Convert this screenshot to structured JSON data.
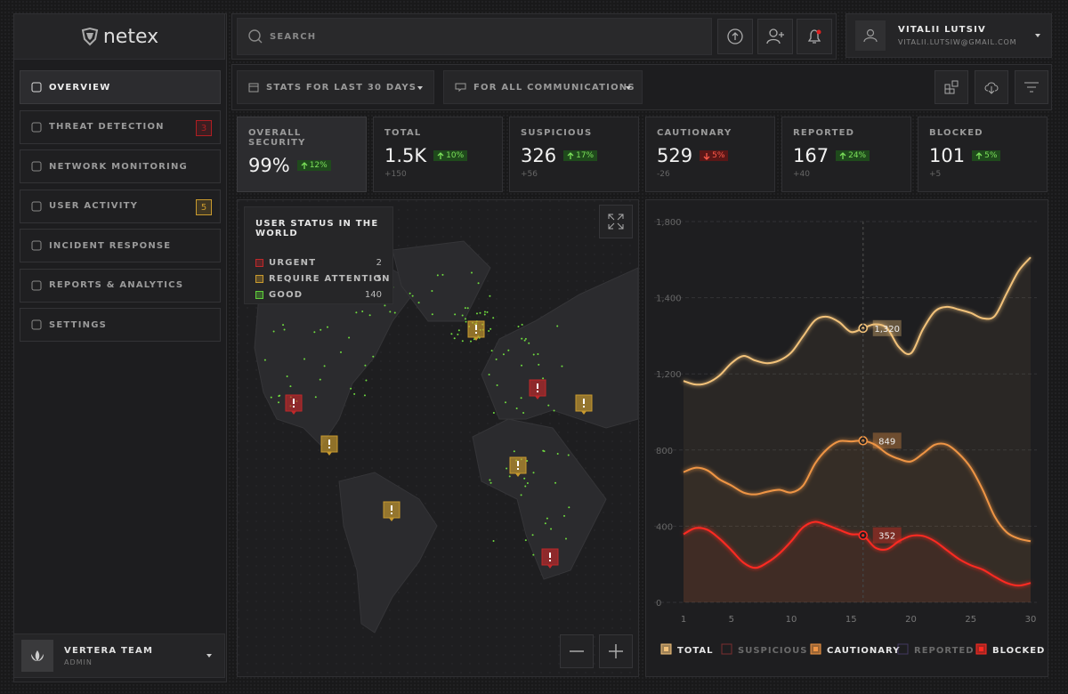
{
  "brand": "netex",
  "nav": [
    {
      "label": "OVERVIEW",
      "active": true
    },
    {
      "label": "THREAT DETECTION",
      "badge": 3,
      "badge_color": "#b01e22"
    },
    {
      "label": "NETWORK MONITORING"
    },
    {
      "label": "USER ACTIVITY",
      "badge": 5,
      "badge_color": "#c99a2e"
    },
    {
      "label": "INCIDENT RESPONSE"
    },
    {
      "label": "REPORTS & ANALYTICS"
    },
    {
      "label": "SETTINGS"
    }
  ],
  "team": {
    "name": "VERTERA TEAM",
    "role": "ADMIN"
  },
  "search": {
    "placeholder": "SEARCH"
  },
  "user": {
    "name": "VITALII LUTSIV",
    "email": "VITALII.LUTSIW@GMAIL.COM"
  },
  "filters": [
    "STATS FOR LAST 30 DAYS",
    "FOR ALL COMMUNICATIONS"
  ],
  "cards": [
    {
      "label": "OVERALL SECURITY",
      "value": "99%",
      "change": "12%",
      "direction": "up",
      "active": true
    },
    {
      "label": "TOTAL",
      "value": "1.5K",
      "change": "10%",
      "direction": "up",
      "sub": "+150"
    },
    {
      "label": "SUSPICIOUS",
      "value": "326",
      "change": "17%",
      "direction": "up",
      "sub": "+56"
    },
    {
      "label": "CAUTIONARY",
      "value": "529",
      "change": "5%",
      "direction": "down",
      "sub": "-26"
    },
    {
      "label": "REPORTED",
      "value": "167",
      "change": "24%",
      "direction": "up",
      "sub": "+40"
    },
    {
      "label": "BLOCKED",
      "value": "101",
      "change": "5%",
      "direction": "up",
      "sub": "+5"
    }
  ],
  "map": {
    "title": "USER STATUS IN THE WORLD",
    "legend": [
      {
        "label": "URGENT",
        "count": 2,
        "color": "#c0282a"
      },
      {
        "label": "REQUIRE ATTENTION",
        "count": 5,
        "color": "#c99a2e"
      },
      {
        "label": "GOOD",
        "count": 140,
        "color": "#5fd03a"
      }
    ]
  },
  "chart_data": {
    "type": "line",
    "x": [
      1,
      2,
      3,
      4,
      5,
      6,
      7,
      8,
      9,
      10,
      11,
      12,
      13,
      14,
      15,
      16,
      17,
      18,
      19,
      20,
      21,
      22,
      23,
      24,
      25,
      26,
      27,
      28,
      29,
      30
    ],
    "xlim": [
      1,
      30
    ],
    "xticks": [
      1,
      5,
      10,
      15,
      20,
      25,
      30
    ],
    "ylim": [
      0,
      1800
    ],
    "yticks": [
      0,
      400,
      800,
      {
        "value": 1200,
        "label": "1,200"
      },
      {
        "value": 1400,
        "label": "1,400"
      },
      {
        "value": 1800,
        "label": "1,800"
      }
    ],
    "grid": true,
    "series": [
      {
        "name": "TOTAL",
        "color": "#f2c27a",
        "visible": true,
        "values": [
          1163,
          1144,
          1153,
          1191,
          1228,
          1247,
          1235,
          1228,
          1235,
          1256,
          1299,
          1341,
          1350,
          1336,
          1310,
          1320,
          1330,
          1320,
          1270,
          1254,
          1317,
          1364,
          1376,
          1369,
          1360,
          1346,
          1352,
          1423,
          1541,
          1612
        ],
        "value_labels": [
          null,
          null,
          null,
          null,
          null,
          null,
          null,
          null,
          null,
          null,
          null,
          null,
          null,
          null,
          null,
          "1,320",
          null,
          null,
          null,
          null,
          null,
          null,
          null,
          null,
          null,
          null,
          null,
          null,
          null,
          null
        ]
      },
      {
        "name": "SUSPICIOUS",
        "color": "#b83a3a",
        "visible": false
      },
      {
        "name": "CAUTIONARY",
        "color": "#ef9545",
        "visible": true,
        "values": [
          684,
          707,
          693,
          646,
          614,
          577,
          567,
          581,
          591,
          577,
          614,
          730,
          805,
          846,
          845,
          849,
          828,
          781,
          753,
          740,
          781,
          828,
          828,
          781,
          707,
          591,
          451,
          368,
          335,
          321
        ],
        "value_labels": [
          null,
          null,
          null,
          null,
          null,
          null,
          null,
          null,
          null,
          null,
          null,
          null,
          null,
          null,
          null,
          "849",
          null,
          null,
          null,
          null,
          null,
          null,
          null,
          null,
          null,
          null,
          null,
          null,
          null,
          null
        ]
      },
      {
        "name": "REPORTED",
        "color": "#5a4a8a",
        "visible": false
      },
      {
        "name": "BLOCKED",
        "color": "#ff2a22",
        "visible": true,
        "values": [
          358,
          390,
          381,
          335,
          274,
          209,
          181,
          209,
          256,
          321,
          395,
          423,
          405,
          381,
          358,
          352,
          288,
          279,
          321,
          349,
          349,
          321,
          274,
          228,
          195,
          172,
          135,
          102,
          88,
          102
        ],
        "value_labels": [
          null,
          null,
          null,
          null,
          null,
          null,
          null,
          null,
          null,
          null,
          null,
          null,
          null,
          null,
          null,
          "352",
          null,
          null,
          null,
          null,
          null,
          null,
          null,
          null,
          null,
          null,
          null,
          null,
          null,
          null
        ]
      }
    ]
  }
}
